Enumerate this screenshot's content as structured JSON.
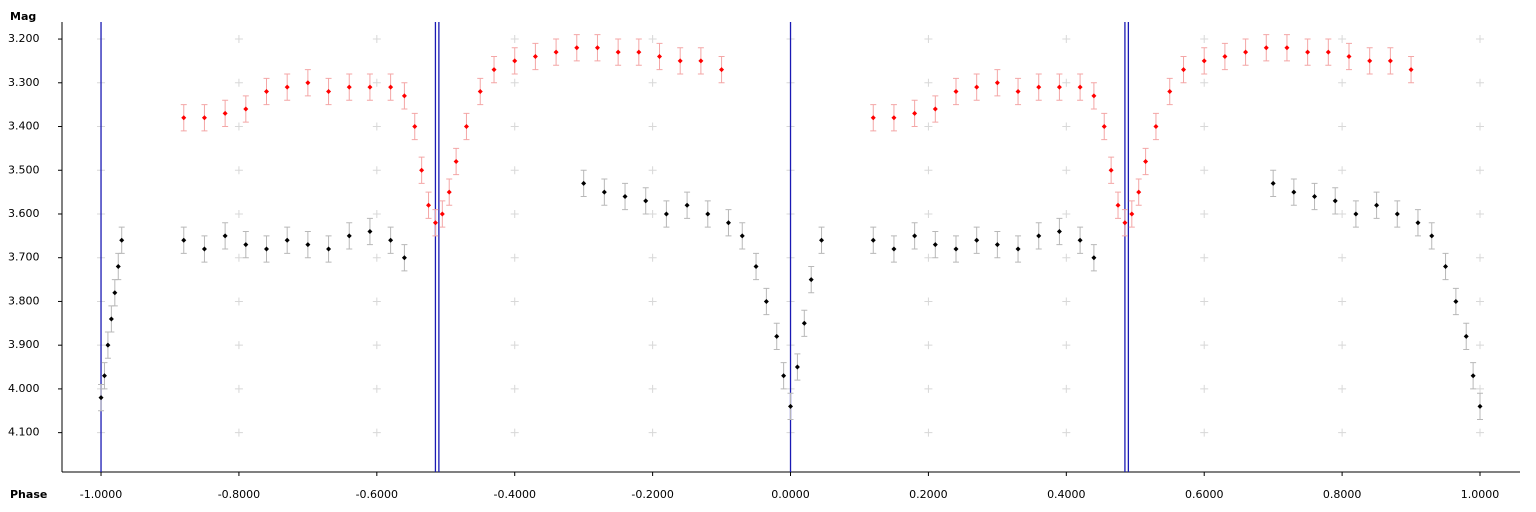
{
  "chart_data": {
    "type": "scatter",
    "xlabel": "Phase",
    "ylabel": "Mag",
    "xlim": [
      -1.0566,
      1.058
    ],
    "ylim": [
      4.19,
      3.161
    ],
    "xticks": [
      {
        "value": -1.0,
        "label": "-1.0000"
      },
      {
        "value": -0.8,
        "label": "-0.8000"
      },
      {
        "value": -0.6,
        "label": "-0.6000"
      },
      {
        "value": -0.4,
        "label": "-0.4000"
      },
      {
        "value": -0.2,
        "label": "-0.2000"
      },
      {
        "value": 0,
        "label": "0.0000"
      },
      {
        "value": 0.2,
        "label": "0.2000"
      },
      {
        "value": 0.4,
        "label": "0.4000"
      },
      {
        "value": 0.6,
        "label": "0.6000"
      },
      {
        "value": 0.8,
        "label": "0.8000"
      },
      {
        "value": 1.0,
        "label": "1.0000"
      }
    ],
    "yticks": [
      {
        "value": 3.2,
        "label": "3.200"
      },
      {
        "value": 3.3,
        "label": "3.300"
      },
      {
        "value": 3.4,
        "label": "3.400"
      },
      {
        "value": 3.5,
        "label": "3.500"
      },
      {
        "value": 3.6,
        "label": "3.600"
      },
      {
        "value": 3.7,
        "label": "3.700"
      },
      {
        "value": 3.8,
        "label": "3.800"
      },
      {
        "value": 3.9,
        "label": "3.900"
      },
      {
        "value": 4.0,
        "label": "4.000"
      },
      {
        "value": 4.1,
        "label": "4.100"
      }
    ],
    "grid": true,
    "vlines": [
      -1.0,
      -0.515,
      -0.51,
      0.0,
      0.485,
      0.49
    ],
    "vline_color": "#1a1ab4",
    "series": [
      {
        "color": "#000000",
        "error_color": "#b8b8b8",
        "error": 0.03,
        "x": [
          -1.0,
          -0.995,
          -0.99,
          -0.985,
          -0.98,
          -0.975,
          -0.97,
          -0.88,
          -0.85,
          -0.82,
          -0.79,
          -0.76,
          -0.73,
          -0.7,
          -0.67,
          -0.64,
          -0.61,
          -0.58,
          -0.56,
          -0.3,
          -0.27,
          -0.24,
          -0.21,
          -0.18,
          -0.15,
          -0.12,
          -0.09,
          -0.07,
          -0.05,
          -0.035,
          -0.02,
          -0.01,
          0.0,
          0.01,
          0.02,
          0.03,
          0.045,
          0.12,
          0.15,
          0.18,
          0.21,
          0.24,
          0.27,
          0.3,
          0.33,
          0.36,
          0.39,
          0.42,
          0.44,
          0.7,
          0.73,
          0.76,
          0.79,
          0.82,
          0.85,
          0.88,
          0.91,
          0.93,
          0.95,
          0.965,
          0.98,
          0.99,
          1.0
        ],
        "values": [
          4.02,
          3.97,
          3.9,
          3.84,
          3.78,
          3.72,
          3.66,
          3.66,
          3.68,
          3.65,
          3.67,
          3.68,
          3.66,
          3.67,
          3.68,
          3.65,
          3.64,
          3.66,
          3.7,
          3.53,
          3.55,
          3.56,
          3.57,
          3.6,
          3.58,
          3.6,
          3.62,
          3.65,
          3.72,
          3.8,
          3.88,
          3.97,
          4.04,
          3.95,
          3.85,
          3.75,
          3.66,
          3.66,
          3.68,
          3.65,
          3.67,
          3.68,
          3.66,
          3.67,
          3.68,
          3.65,
          3.64,
          3.66,
          3.7,
          3.53,
          3.55,
          3.56,
          3.57,
          3.6,
          3.58,
          3.6,
          3.62,
          3.65,
          3.72,
          3.8,
          3.88,
          3.97,
          4.04
        ]
      },
      {
        "color": "#ff0000",
        "error_color": "#f4a6a6",
        "error": 0.03,
        "x": [
          -0.88,
          -0.85,
          -0.82,
          -0.79,
          -0.76,
          -0.73,
          -0.7,
          -0.67,
          -0.64,
          -0.61,
          -0.58,
          -0.56,
          -0.545,
          -0.535,
          -0.525,
          -0.515,
          -0.505,
          -0.495,
          -0.485,
          -0.47,
          -0.45,
          -0.43,
          -0.4,
          -0.37,
          -0.34,
          -0.31,
          -0.28,
          -0.25,
          -0.22,
          -0.19,
          -0.16,
          -0.13,
          -0.1,
          0.12,
          0.15,
          0.18,
          0.21,
          0.24,
          0.27,
          0.3,
          0.33,
          0.36,
          0.39,
          0.42,
          0.44,
          0.455,
          0.465,
          0.475,
          0.485,
          0.495,
          0.505,
          0.515,
          0.53,
          0.55,
          0.57,
          0.6,
          0.63,
          0.66,
          0.69,
          0.72,
          0.75,
          0.78,
          0.81,
          0.84,
          0.87,
          0.9
        ],
        "values": [
          3.38,
          3.38,
          3.37,
          3.36,
          3.32,
          3.31,
          3.3,
          3.32,
          3.31,
          3.31,
          3.31,
          3.33,
          3.4,
          3.5,
          3.58,
          3.62,
          3.6,
          3.55,
          3.48,
          3.4,
          3.32,
          3.27,
          3.25,
          3.24,
          3.23,
          3.22,
          3.22,
          3.23,
          3.23,
          3.24,
          3.25,
          3.25,
          3.27,
          3.38,
          3.38,
          3.37,
          3.36,
          3.32,
          3.31,
          3.3,
          3.32,
          3.31,
          3.31,
          3.31,
          3.33,
          3.4,
          3.5,
          3.58,
          3.62,
          3.6,
          3.55,
          3.48,
          3.4,
          3.32,
          3.27,
          3.25,
          3.24,
          3.23,
          3.22,
          3.22,
          3.23,
          3.23,
          3.24,
          3.25,
          3.25,
          3.27
        ]
      }
    ]
  }
}
